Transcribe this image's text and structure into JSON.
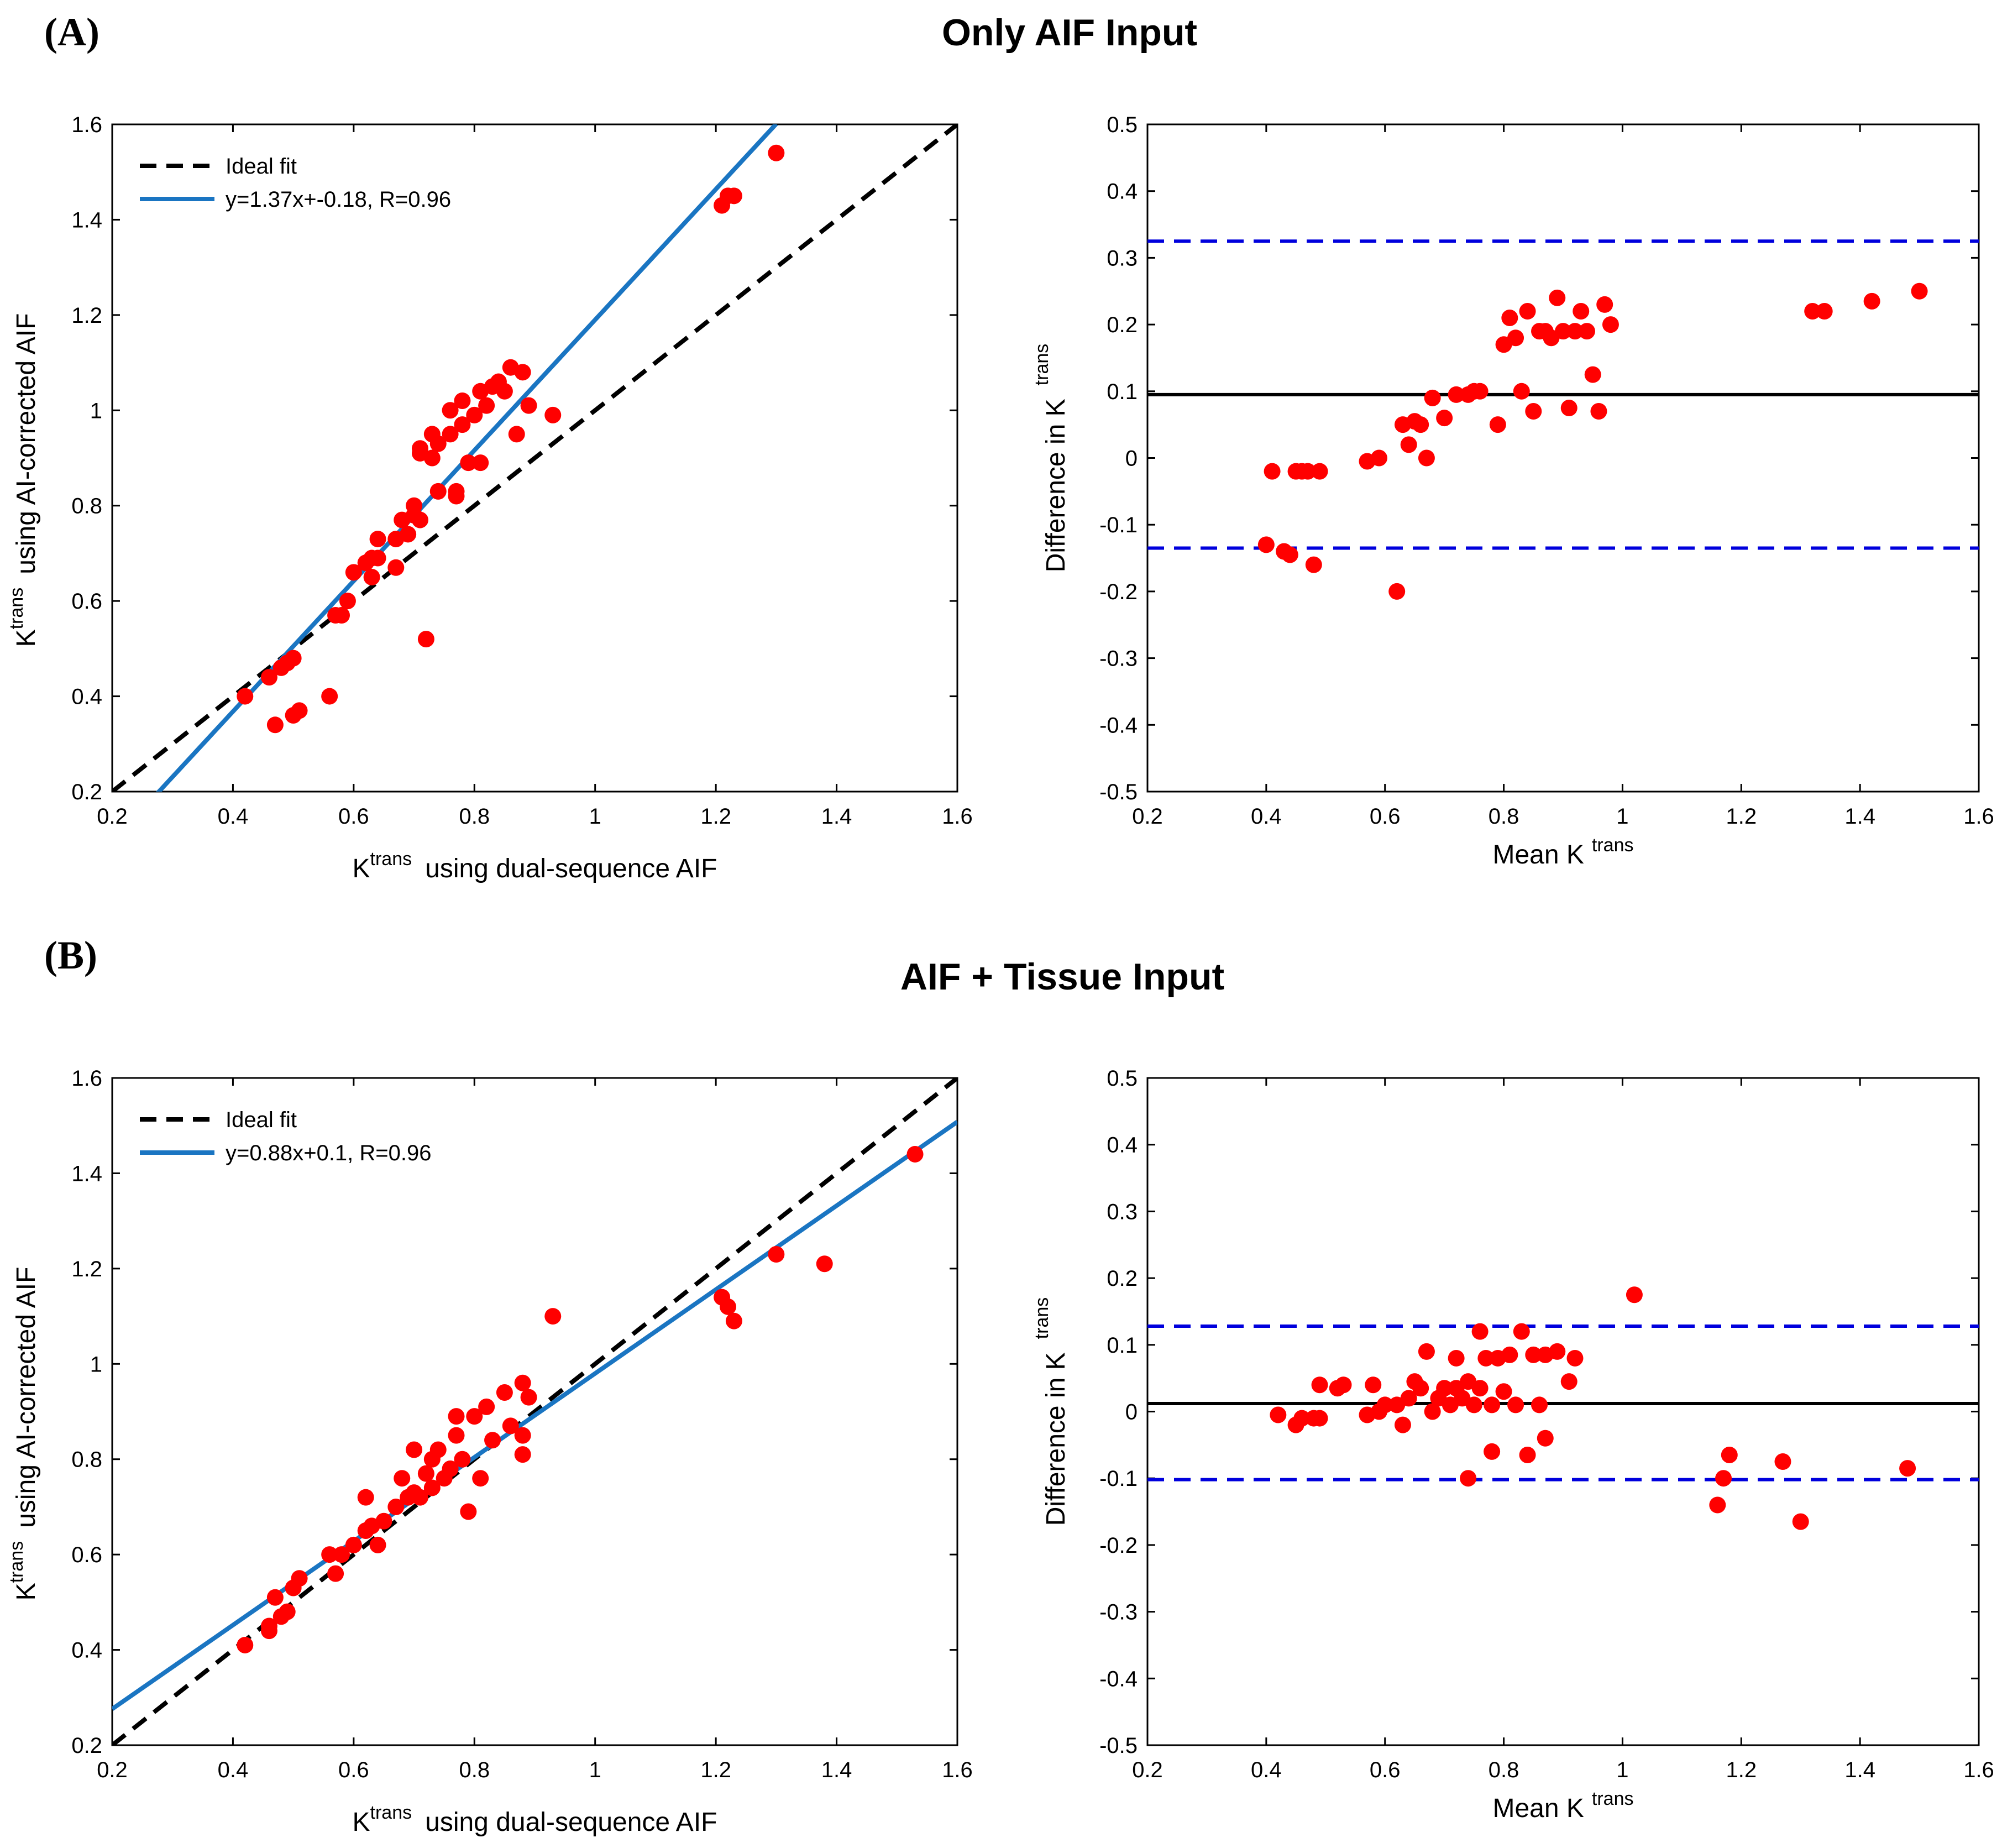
{
  "figure": {
    "panels": [
      {
        "label": "(A)",
        "title": "Only AIF Input"
      },
      {
        "label": "(B)",
        "title": "AIF + Tissue Input"
      }
    ]
  },
  "colors": {
    "points": "#ff0000",
    "fit": "#1a75c2",
    "ideal": "#000000",
    "limits": "#0000dd",
    "mean": "#000000"
  },
  "chart_data": [
    {
      "type": "scatter",
      "panel": "A",
      "title": "Only AIF Input",
      "xlabel_base": "K",
      "xlabel_sup": "trans",
      "xlabel_rest": "using dual-sequence AIF",
      "ylabel_base": "K",
      "ylabel_sup": "trans",
      "ylabel_rest": "using AI-corrected AIF",
      "xlim": [
        0.2,
        1.6
      ],
      "ylim": [
        0.2,
        1.6
      ],
      "xticks": [
        "0.2",
        "0.4",
        "0.6",
        "0.8",
        "1",
        "1.2",
        "1.4",
        "1.6"
      ],
      "yticks": [
        "0.2",
        "0.4",
        "0.6",
        "0.8",
        "1",
        "1.2",
        "1.4",
        "1.6"
      ],
      "legend": [
        "Ideal fit",
        "y=1.37x+-0.18, R=0.96"
      ],
      "ideal_fit": {
        "slope": 1,
        "intercept": 0
      },
      "fit": {
        "slope": 1.37,
        "intercept": -0.18
      },
      "points": [
        [
          0.42,
          0.4
        ],
        [
          0.46,
          0.44
        ],
        [
          0.47,
          0.34
        ],
        [
          0.48,
          0.46
        ],
        [
          0.49,
          0.47
        ],
        [
          0.5,
          0.48
        ],
        [
          0.5,
          0.36
        ],
        [
          0.51,
          0.37
        ],
        [
          0.56,
          0.4
        ],
        [
          0.57,
          0.57
        ],
        [
          0.58,
          0.57
        ],
        [
          0.59,
          0.6
        ],
        [
          0.6,
          0.66
        ],
        [
          0.62,
          0.68
        ],
        [
          0.63,
          0.65
        ],
        [
          0.63,
          0.69
        ],
        [
          0.64,
          0.73
        ],
        [
          0.64,
          0.69
        ],
        [
          0.67,
          0.67
        ],
        [
          0.67,
          0.73
        ],
        [
          0.68,
          0.77
        ],
        [
          0.69,
          0.74
        ],
        [
          0.7,
          0.8
        ],
        [
          0.7,
          0.78
        ],
        [
          0.71,
          0.77
        ],
        [
          0.71,
          0.92
        ],
        [
          0.71,
          0.91
        ],
        [
          0.72,
          0.52
        ],
        [
          0.73,
          0.9
        ],
        [
          0.73,
          0.95
        ],
        [
          0.74,
          0.83
        ],
        [
          0.74,
          0.93
        ],
        [
          0.76,
          0.95
        ],
        [
          0.76,
          1.0
        ],
        [
          0.77,
          0.82
        ],
        [
          0.77,
          0.83
        ],
        [
          0.78,
          1.02
        ],
        [
          0.78,
          0.97
        ],
        [
          0.79,
          0.89
        ],
        [
          0.8,
          0.99
        ],
        [
          0.81,
          1.04
        ],
        [
          0.81,
          0.89
        ],
        [
          0.82,
          1.01
        ],
        [
          0.83,
          1.05
        ],
        [
          0.84,
          1.06
        ],
        [
          0.85,
          1.04
        ],
        [
          0.86,
          1.09
        ],
        [
          0.87,
          0.95
        ],
        [
          0.88,
          1.08
        ],
        [
          0.89,
          1.01
        ],
        [
          0.93,
          0.99
        ],
        [
          1.21,
          1.43
        ],
        [
          1.22,
          1.45
        ],
        [
          1.23,
          1.45
        ],
        [
          1.3,
          1.54
        ]
      ]
    },
    {
      "type": "scatter",
      "panel": "A",
      "subtype": "bland-altman",
      "xlabel": "Mean K",
      "xlabel_sup": "trans",
      "ylabel": "Difference in K",
      "ylabel_sup": "trans",
      "xlim": [
        0.2,
        1.6
      ],
      "ylim": [
        -0.5,
        0.5
      ],
      "xticks": [
        "0.2",
        "0.4",
        "0.6",
        "0.8",
        "1",
        "1.2",
        "1.4",
        "1.6"
      ],
      "yticks": [
        "-0.5",
        "-0.4",
        "-0.3",
        "-0.2",
        "-0.1",
        "0",
        "0.1",
        "0.2",
        "0.3",
        "0.4",
        "0.5"
      ],
      "mean_line": 0.095,
      "limits": [
        0.325,
        -0.135
      ],
      "points": [
        [
          0.41,
          -0.02
        ],
        [
          0.4,
          -0.13
        ],
        [
          0.43,
          -0.14
        ],
        [
          0.44,
          -0.145
        ],
        [
          0.45,
          -0.02
        ],
        [
          0.46,
          -0.02
        ],
        [
          0.47,
          -0.02
        ],
        [
          0.48,
          -0.16
        ],
        [
          0.49,
          -0.02
        ],
        [
          0.57,
          -0.005
        ],
        [
          0.59,
          0.0
        ],
        [
          0.62,
          -0.2
        ],
        [
          0.63,
          0.05
        ],
        [
          0.64,
          0.02
        ],
        [
          0.65,
          0.055
        ],
        [
          0.66,
          0.05
        ],
        [
          0.67,
          0.0
        ],
        [
          0.68,
          0.09
        ],
        [
          0.7,
          0.06
        ],
        [
          0.72,
          0.095
        ],
        [
          0.74,
          0.095
        ],
        [
          0.75,
          0.1
        ],
        [
          0.76,
          0.1
        ],
        [
          0.79,
          0.05
        ],
        [
          0.8,
          0.17
        ],
        [
          0.81,
          0.21
        ],
        [
          0.82,
          0.18
        ],
        [
          0.83,
          0.1
        ],
        [
          0.84,
          0.22
        ],
        [
          0.85,
          0.07
        ],
        [
          0.86,
          0.19
        ],
        [
          0.87,
          0.19
        ],
        [
          0.88,
          0.18
        ],
        [
          0.89,
          0.24
        ],
        [
          0.9,
          0.19
        ],
        [
          0.91,
          0.075
        ],
        [
          0.92,
          0.19
        ],
        [
          0.93,
          0.22
        ],
        [
          0.94,
          0.19
        ],
        [
          0.95,
          0.125
        ],
        [
          0.96,
          0.07
        ],
        [
          0.97,
          0.23
        ],
        [
          0.98,
          0.2
        ],
        [
          1.32,
          0.22
        ],
        [
          1.34,
          0.22
        ],
        [
          1.42,
          0.235
        ],
        [
          1.5,
          0.25
        ]
      ]
    },
    {
      "type": "scatter",
      "panel": "B",
      "title": "AIF + Tissue Input",
      "xlabel_base": "K",
      "xlabel_sup": "trans",
      "xlabel_rest": "using dual-sequence AIF",
      "ylabel_base": "K",
      "ylabel_sup": "trans",
      "ylabel_rest": "using AI-corrected AIF",
      "xlim": [
        0.2,
        1.6
      ],
      "ylim": [
        0.2,
        1.6
      ],
      "xticks": [
        "0.2",
        "0.4",
        "0.6",
        "0.8",
        "1",
        "1.2",
        "1.4",
        "1.6"
      ],
      "yticks": [
        "0.2",
        "0.4",
        "0.6",
        "0.8",
        "1",
        "1.2",
        "1.4",
        "1.6"
      ],
      "legend": [
        "Ideal fit",
        "y=0.88x+0.1, R=0.96"
      ],
      "ideal_fit": {
        "slope": 1,
        "intercept": 0
      },
      "fit": {
        "slope": 0.88,
        "intercept": 0.1
      },
      "points": [
        [
          0.42,
          0.41
        ],
        [
          0.46,
          0.45
        ],
        [
          0.46,
          0.44
        ],
        [
          0.47,
          0.51
        ],
        [
          0.48,
          0.47
        ],
        [
          0.49,
          0.48
        ],
        [
          0.5,
          0.53
        ],
        [
          0.51,
          0.55
        ],
        [
          0.56,
          0.6
        ],
        [
          0.57,
          0.56
        ],
        [
          0.58,
          0.6
        ],
        [
          0.6,
          0.62
        ],
        [
          0.62,
          0.65
        ],
        [
          0.62,
          0.72
        ],
        [
          0.63,
          0.66
        ],
        [
          0.64,
          0.62
        ],
        [
          0.65,
          0.67
        ],
        [
          0.67,
          0.7
        ],
        [
          0.68,
          0.76
        ],
        [
          0.69,
          0.72
        ],
        [
          0.7,
          0.73
        ],
        [
          0.7,
          0.82
        ],
        [
          0.71,
          0.72
        ],
        [
          0.72,
          0.77
        ],
        [
          0.73,
          0.74
        ],
        [
          0.73,
          0.8
        ],
        [
          0.74,
          0.82
        ],
        [
          0.75,
          0.76
        ],
        [
          0.76,
          0.78
        ],
        [
          0.77,
          0.85
        ],
        [
          0.77,
          0.89
        ],
        [
          0.78,
          0.8
        ],
        [
          0.79,
          0.69
        ],
        [
          0.8,
          0.89
        ],
        [
          0.81,
          0.76
        ],
        [
          0.82,
          0.91
        ],
        [
          0.83,
          0.84
        ],
        [
          0.85,
          0.94
        ],
        [
          0.86,
          0.87
        ],
        [
          0.88,
          0.85
        ],
        [
          0.88,
          0.81
        ],
        [
          0.88,
          0.96
        ],
        [
          0.89,
          0.93
        ],
        [
          0.93,
          1.1
        ],
        [
          1.21,
          1.14
        ],
        [
          1.22,
          1.12
        ],
        [
          1.23,
          1.09
        ],
        [
          1.3,
          1.23
        ],
        [
          1.38,
          1.21
        ],
        [
          1.53,
          1.44
        ]
      ]
    },
    {
      "type": "scatter",
      "panel": "B",
      "subtype": "bland-altman",
      "xlabel": "Mean K",
      "xlabel_sup": "trans",
      "ylabel": "Difference in K",
      "ylabel_sup": "trans",
      "xlim": [
        0.2,
        1.6
      ],
      "ylim": [
        -0.5,
        0.5
      ],
      "xticks": [
        "0.2",
        "0.4",
        "0.6",
        "0.8",
        "1",
        "1.2",
        "1.4",
        "1.6"
      ],
      "yticks": [
        "-0.5",
        "-0.4",
        "-0.3",
        "-0.2",
        "-0.1",
        "0",
        "0.1",
        "0.2",
        "0.3",
        "0.4",
        "0.5"
      ],
      "mean_line": 0.012,
      "limits": [
        0.128,
        -0.102
      ],
      "points": [
        [
          0.42,
          -0.005
        ],
        [
          0.45,
          -0.02
        ],
        [
          0.46,
          -0.01
        ],
        [
          0.48,
          -0.01
        ],
        [
          0.49,
          -0.01
        ],
        [
          0.49,
          0.04
        ],
        [
          0.52,
          0.035
        ],
        [
          0.53,
          0.04
        ],
        [
          0.57,
          -0.005
        ],
        [
          0.58,
          0.04
        ],
        [
          0.59,
          0.0
        ],
        [
          0.6,
          0.01
        ],
        [
          0.62,
          0.01
        ],
        [
          0.63,
          -0.02
        ],
        [
          0.64,
          0.02
        ],
        [
          0.65,
          0.045
        ],
        [
          0.66,
          0.035
        ],
        [
          0.67,
          0.09
        ],
        [
          0.68,
          0.0
        ],
        [
          0.69,
          0.02
        ],
        [
          0.7,
          0.035
        ],
        [
          0.71,
          0.01
        ],
        [
          0.72,
          0.08
        ],
        [
          0.72,
          0.035
        ],
        [
          0.73,
          0.02
        ],
        [
          0.74,
          -0.1
        ],
        [
          0.74,
          0.045
        ],
        [
          0.75,
          0.01
        ],
        [
          0.76,
          0.12
        ],
        [
          0.76,
          0.035
        ],
        [
          0.77,
          0.08
        ],
        [
          0.78,
          -0.06
        ],
        [
          0.78,
          0.01
        ],
        [
          0.79,
          0.08
        ],
        [
          0.8,
          0.03
        ],
        [
          0.81,
          0.085
        ],
        [
          0.82,
          0.01
        ],
        [
          0.83,
          0.12
        ],
        [
          0.84,
          -0.065
        ],
        [
          0.85,
          0.085
        ],
        [
          0.86,
          0.01
        ],
        [
          0.87,
          0.085
        ],
        [
          0.87,
          -0.04
        ],
        [
          0.89,
          0.09
        ],
        [
          0.91,
          0.045
        ],
        [
          0.92,
          0.08
        ],
        [
          1.02,
          0.175
        ],
        [
          1.16,
          -0.14
        ],
        [
          1.17,
          -0.1
        ],
        [
          1.18,
          -0.065
        ],
        [
          1.27,
          -0.075
        ],
        [
          1.3,
          -0.165
        ],
        [
          1.48,
          -0.085
        ]
      ]
    }
  ]
}
